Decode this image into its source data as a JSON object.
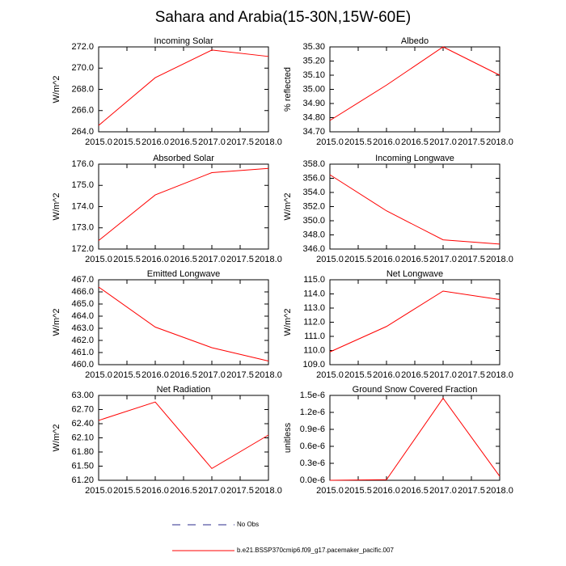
{
  "title": "Sahara and Arabia(15-30N,15W-60E)",
  "legend": [
    {
      "label": "No Obs",
      "color": "#2b2b8c",
      "dashed": true
    },
    {
      "label": "b.e21.BSSP370cmip6.f09_g17.pacemaker_pacific.007",
      "color": "#ff0000",
      "dashed": false
    }
  ],
  "chart_data": [
    {
      "type": "line",
      "title": "Incoming Solar",
      "y_label": "W/m^2",
      "color": "#ff0000",
      "x": [
        2015,
        2016,
        2017,
        2018
      ],
      "values": [
        264.6,
        269.1,
        271.7,
        271.1
      ],
      "xlim": [
        2015,
        2018
      ],
      "xticks": [
        {
          "value": 2015,
          "label": "2015.0"
        },
        {
          "value": 2015.5,
          "label": "2015.5"
        },
        {
          "value": 2016,
          "label": "2016.0"
        },
        {
          "value": 2016.5,
          "label": "2016.5"
        },
        {
          "value": 2017,
          "label": "2017.0"
        },
        {
          "value": 2017.5,
          "label": "2017.5"
        },
        {
          "value": 2018,
          "label": "2018.0"
        }
      ],
      "ylim": [
        264,
        272
      ],
      "yticks": [
        {
          "value": 264,
          "label": "264.0"
        },
        {
          "value": 266,
          "label": "266.0"
        },
        {
          "value": 268,
          "label": "268.0"
        },
        {
          "value": 270,
          "label": "270.0"
        },
        {
          "value": 272,
          "label": "272.0"
        }
      ]
    },
    {
      "type": "line",
      "title": "Albedo",
      "y_label": "% reflected",
      "color": "#ff0000",
      "x": [
        2015,
        2016,
        2017,
        2018
      ],
      "values": [
        34.78,
        35.03,
        35.3,
        35.1
      ],
      "xlim": [
        2015,
        2018
      ],
      "xticks": [
        {
          "value": 2015,
          "label": "2015.0"
        },
        {
          "value": 2015.5,
          "label": "2015.5"
        },
        {
          "value": 2016,
          "label": "2016.0"
        },
        {
          "value": 2016.5,
          "label": "2016.5"
        },
        {
          "value": 2017,
          "label": "2017.0"
        },
        {
          "value": 2017.5,
          "label": "2017.5"
        },
        {
          "value": 2018,
          "label": "2018.0"
        }
      ],
      "ylim": [
        34.7,
        35.3
      ],
      "yticks": [
        {
          "value": 34.7,
          "label": "34.70"
        },
        {
          "value": 34.8,
          "label": "34.80"
        },
        {
          "value": 34.9,
          "label": "34.90"
        },
        {
          "value": 35,
          "label": "35.00"
        },
        {
          "value": 35.1,
          "label": "35.10"
        },
        {
          "value": 35.2,
          "label": "35.20"
        },
        {
          "value": 35.3,
          "label": "35.30"
        }
      ]
    },
    {
      "type": "line",
      "title": "Absorbed Solar",
      "y_label": "W/m^2",
      "color": "#ff0000",
      "x": [
        2015,
        2016,
        2017,
        2018
      ],
      "values": [
        172.4,
        174.55,
        175.6,
        175.8
      ],
      "xlim": [
        2015,
        2018
      ],
      "xticks": [
        {
          "value": 2015,
          "label": "2015.0"
        },
        {
          "value": 2015.5,
          "label": "2015.5"
        },
        {
          "value": 2016,
          "label": "2016.0"
        },
        {
          "value": 2016.5,
          "label": "2016.5"
        },
        {
          "value": 2017,
          "label": "2017.0"
        },
        {
          "value": 2017.5,
          "label": "2017.5"
        },
        {
          "value": 2018,
          "label": "2018.0"
        }
      ],
      "ylim": [
        172,
        176
      ],
      "yticks": [
        {
          "value": 172,
          "label": "172.0"
        },
        {
          "value": 173,
          "label": "173.0"
        },
        {
          "value": 174,
          "label": "174.0"
        },
        {
          "value": 175,
          "label": "175.0"
        },
        {
          "value": 176,
          "label": "176.0"
        }
      ]
    },
    {
      "type": "line",
      "title": "Incoming Longwave",
      "y_label": "W/m^2",
      "color": "#ff0000",
      "x": [
        2015,
        2016,
        2017,
        2018
      ],
      "values": [
        356.5,
        351.4,
        347.3,
        346.7
      ],
      "xlim": [
        2015,
        2018
      ],
      "xticks": [
        {
          "value": 2015,
          "label": "2015.0"
        },
        {
          "value": 2015.5,
          "label": "2015.5"
        },
        {
          "value": 2016,
          "label": "2016.0"
        },
        {
          "value": 2016.5,
          "label": "2016.5"
        },
        {
          "value": 2017,
          "label": "2017.0"
        },
        {
          "value": 2017.5,
          "label": "2017.5"
        },
        {
          "value": 2018,
          "label": "2018.0"
        }
      ],
      "ylim": [
        346,
        358
      ],
      "yticks": [
        {
          "value": 346,
          "label": "346.0"
        },
        {
          "value": 348,
          "label": "348.0"
        },
        {
          "value": 350,
          "label": "350.0"
        },
        {
          "value": 352,
          "label": "352.0"
        },
        {
          "value": 354,
          "label": "354.0"
        },
        {
          "value": 356,
          "label": "356.0"
        },
        {
          "value": 358,
          "label": "358.0"
        }
      ]
    },
    {
      "type": "line",
      "title": "Emitted Longwave",
      "y_label": "W/m^2",
      "color": "#ff0000",
      "x": [
        2015,
        2016,
        2017,
        2018
      ],
      "values": [
        466.4,
        463.1,
        461.4,
        460.3
      ],
      "xlim": [
        2015,
        2018
      ],
      "xticks": [
        {
          "value": 2015,
          "label": "2015.0"
        },
        {
          "value": 2015.5,
          "label": "2015.5"
        },
        {
          "value": 2016,
          "label": "2016.0"
        },
        {
          "value": 2016.5,
          "label": "2016.5"
        },
        {
          "value": 2017,
          "label": "2017.0"
        },
        {
          "value": 2017.5,
          "label": "2017.5"
        },
        {
          "value": 2018,
          "label": "2018.0"
        }
      ],
      "ylim": [
        460,
        467
      ],
      "yticks": [
        {
          "value": 460,
          "label": "460.0"
        },
        {
          "value": 461,
          "label": "461.0"
        },
        {
          "value": 462,
          "label": "462.0"
        },
        {
          "value": 463,
          "label": "463.0"
        },
        {
          "value": 464,
          "label": "464.0"
        },
        {
          "value": 465,
          "label": "465.0"
        },
        {
          "value": 466,
          "label": "466.0"
        },
        {
          "value": 467,
          "label": "467.0"
        }
      ]
    },
    {
      "type": "line",
      "title": "Net Longwave",
      "y_label": "W/m^2",
      "color": "#ff0000",
      "x": [
        2015,
        2016,
        2017,
        2018
      ],
      "values": [
        109.9,
        111.7,
        114.2,
        113.6
      ],
      "xlim": [
        2015,
        2018
      ],
      "xticks": [
        {
          "value": 2015,
          "label": "2015.0"
        },
        {
          "value": 2015.5,
          "label": "2015.5"
        },
        {
          "value": 2016,
          "label": "2016.0"
        },
        {
          "value": 2016.5,
          "label": "2016.5"
        },
        {
          "value": 2017,
          "label": "2017.0"
        },
        {
          "value": 2017.5,
          "label": "2017.5"
        },
        {
          "value": 2018,
          "label": "2018.0"
        }
      ],
      "ylim": [
        109,
        115
      ],
      "yticks": [
        {
          "value": 109,
          "label": "109.0"
        },
        {
          "value": 110,
          "label": "110.0"
        },
        {
          "value": 111,
          "label": "111.0"
        },
        {
          "value": 112,
          "label": "112.0"
        },
        {
          "value": 113,
          "label": "113.0"
        },
        {
          "value": 114,
          "label": "114.0"
        },
        {
          "value": 115,
          "label": "115.0"
        }
      ]
    },
    {
      "type": "line",
      "title": "Net Radiation",
      "y_label": "W/m^2",
      "color": "#ff0000",
      "x": [
        2015,
        2016,
        2017,
        2018
      ],
      "values": [
        62.47,
        62.86,
        61.45,
        62.16
      ],
      "xlim": [
        2015,
        2018
      ],
      "xticks": [
        {
          "value": 2015,
          "label": "2015.0"
        },
        {
          "value": 2015.5,
          "label": "2015.5"
        },
        {
          "value": 2016,
          "label": "2016.0"
        },
        {
          "value": 2016.5,
          "label": "2016.5"
        },
        {
          "value": 2017,
          "label": "2017.0"
        },
        {
          "value": 2017.5,
          "label": "2017.5"
        },
        {
          "value": 2018,
          "label": "2018.0"
        }
      ],
      "ylim": [
        61.2,
        63
      ],
      "yticks": [
        {
          "value": 61.2,
          "label": "61.20"
        },
        {
          "value": 61.5,
          "label": "61.50"
        },
        {
          "value": 61.8,
          "label": "61.80"
        },
        {
          "value": 62.1,
          "label": "62.10"
        },
        {
          "value": 62.4,
          "label": "62.40"
        },
        {
          "value": 62.7,
          "label": "62.70"
        },
        {
          "value": 63,
          "label": "63.00"
        }
      ]
    },
    {
      "type": "line",
      "title": "Ground Snow Covered Fraction",
      "y_label": "unitless",
      "color": "#ff0000",
      "x": [
        2015,
        2016,
        2017,
        2018
      ],
      "values": [
        0,
        1e-08,
        1.45e-06,
        7e-08
      ],
      "xlim": [
        2015,
        2018
      ],
      "xticks": [
        {
          "value": 2015,
          "label": "2015.0"
        },
        {
          "value": 2015.5,
          "label": "2015.5"
        },
        {
          "value": 2016,
          "label": "2016.0"
        },
        {
          "value": 2016.5,
          "label": "2016.5"
        },
        {
          "value": 2017,
          "label": "2017.0"
        },
        {
          "value": 2017.5,
          "label": "2017.5"
        },
        {
          "value": 2018,
          "label": "2018.0"
        }
      ],
      "ylim": [
        0,
        1.5e-06
      ],
      "yticks": [
        {
          "value": 0,
          "label": "0.0e-6"
        },
        {
          "value": 3e-07,
          "label": "0.3e-6"
        },
        {
          "value": 6e-07,
          "label": "0.6e-6"
        },
        {
          "value": 9e-07,
          "label": "0.9e-6"
        },
        {
          "value": 1.2e-06,
          "label": "1.2e-6"
        },
        {
          "value": 1.5e-06,
          "label": "1.5e-6"
        }
      ]
    }
  ]
}
